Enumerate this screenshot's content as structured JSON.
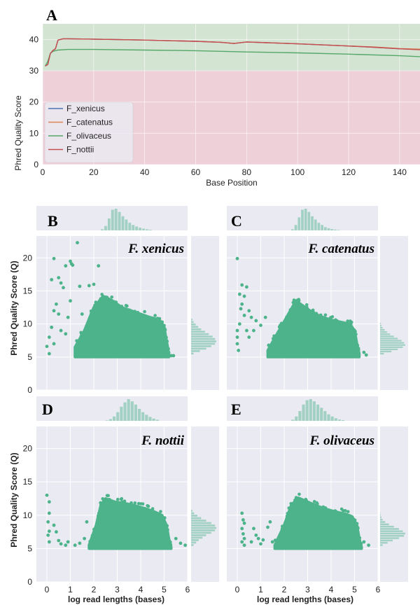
{
  "panel_a": {
    "letter": "A",
    "ylabel": "Phred Quality Score",
    "xlabel": "Base Position",
    "xticks": [
      "0",
      "20",
      "40",
      "60",
      "80",
      "100",
      "120",
      "140"
    ],
    "yticks": [
      "0",
      "10",
      "20",
      "30",
      "40"
    ]
  },
  "panels": {
    "B": {
      "letter": "B",
      "species": "F. xenicus"
    },
    "C": {
      "letter": "C",
      "species": "F. catenatus"
    },
    "D": {
      "letter": "D",
      "species": "F. nottii"
    },
    "E": {
      "letter": "E",
      "species": "F. olivaceus"
    }
  },
  "scatter_ylabel": "Phred Quality Score (Q)",
  "scatter_xlabel": "log read lengths (bases)",
  "scatter_xticks": [
    "0",
    "1",
    "2",
    "3",
    "4",
    "5",
    "6"
  ],
  "scatter_yticks": [
    "0",
    "5",
    "10",
    "15",
    "20"
  ],
  "colors": {
    "background": "#eaeaf2",
    "good_zone": "#d3e4d3",
    "bad_zone": "#eed0d8",
    "scatter": "#4cb38b",
    "xenicus": "#4c72b0",
    "catenatus": "#dd8452",
    "olivaceus": "#55a868",
    "nottii": "#c44e52"
  },
  "chart_data": [
    {
      "type": "line",
      "title": "",
      "xlabel": "Base Position",
      "ylabel": "Phred Quality Score",
      "xlim": [
        0,
        148
      ],
      "ylim": [
        0,
        45
      ],
      "quality_zones": [
        {
          "from": 0,
          "to": 30,
          "color": "#eed0d8"
        },
        {
          "from": 30,
          "to": 45,
          "color": "#d3e4d3"
        }
      ],
      "legend": "lower-left",
      "series": [
        {
          "name": "F_xenicus",
          "color": "#4c72b0",
          "x": [
            1,
            2,
            3,
            4,
            5,
            6,
            8,
            10,
            20,
            40,
            60,
            70,
            75,
            80,
            100,
            120,
            130,
            140,
            148
          ],
          "y": [
            31.5,
            32,
            35.5,
            36.5,
            37,
            39.8,
            40.2,
            40.2,
            40.1,
            39.8,
            39.4,
            39.1,
            38.7,
            39.2,
            38.6,
            37.9,
            37.5,
            37,
            36.8
          ]
        },
        {
          "name": "F_catenatus",
          "color": "#dd8452",
          "x": [
            1,
            2,
            3,
            4,
            5,
            6,
            8,
            10,
            20,
            40,
            60,
            70,
            75,
            80,
            100,
            120,
            130,
            140,
            148
          ],
          "y": [
            31.5,
            32,
            35.5,
            36.5,
            37,
            39.8,
            40.2,
            40.2,
            40.1,
            39.8,
            39.4,
            39.1,
            38.7,
            39.2,
            38.6,
            37.9,
            37.6,
            37.1,
            36.9
          ]
        },
        {
          "name": "F_olivaceus",
          "color": "#55a868",
          "x": [
            1,
            2,
            3,
            4,
            6,
            10,
            20,
            40,
            60,
            80,
            100,
            120,
            140,
            148
          ],
          "y": [
            31.5,
            33,
            35.5,
            36.2,
            36.6,
            36.8,
            36.8,
            36.6,
            36.4,
            36,
            35.7,
            35.3,
            34.8,
            34.5
          ]
        },
        {
          "name": "F_nottii",
          "color": "#c44e52",
          "x": [
            1,
            2,
            3,
            4,
            5,
            6,
            8,
            10,
            20,
            40,
            60,
            70,
            75,
            80,
            100,
            120,
            130,
            140,
            148
          ],
          "y": [
            31.5,
            32,
            35.5,
            36.5,
            37,
            39.8,
            40.2,
            40.2,
            40.1,
            39.8,
            39.4,
            39.1,
            38.7,
            39.2,
            38.6,
            37.9,
            37.5,
            37,
            36.7
          ]
        }
      ]
    },
    {
      "type": "scatter",
      "panel": "B",
      "title": "F. xenicus",
      "xlabel": "log read lengths (bases)",
      "ylabel": "Phred Quality Score (Q)",
      "xlim": [
        -0.3,
        6
      ],
      "ylim": [
        0,
        23
      ],
      "bulk_upper": [
        [
          1.2,
          6.5
        ],
        [
          1.6,
          9
        ],
        [
          2,
          12.5
        ],
        [
          2.4,
          14.2
        ],
        [
          2.8,
          13.5
        ],
        [
          3.2,
          12.5
        ],
        [
          3.6,
          12
        ],
        [
          4,
          11.5
        ],
        [
          4.4,
          11
        ],
        [
          4.8,
          10.6
        ],
        [
          5,
          9.5
        ],
        [
          5.1,
          7.5
        ],
        [
          5.2,
          5.5
        ]
      ],
      "bulk_lower": 5,
      "outliers": [
        [
          0.3,
          19.9
        ],
        [
          1.3,
          22.3
        ],
        [
          1.0,
          19.5
        ],
        [
          1.05,
          19.1
        ],
        [
          0.8,
          18.8
        ],
        [
          0.5,
          17
        ],
        [
          0.2,
          16.7
        ],
        [
          0.6,
          16.2
        ],
        [
          0.7,
          15.5
        ],
        [
          1.4,
          15.7
        ],
        [
          1.1,
          18.9
        ],
        [
          2.2,
          18.8
        ],
        [
          1.0,
          13.5
        ],
        [
          0.4,
          13
        ],
        [
          1.8,
          15.8
        ],
        [
          2.0,
          16
        ],
        [
          0.3,
          12
        ],
        [
          0.5,
          11.5
        ],
        [
          0.9,
          11
        ],
        [
          0.2,
          9.5
        ],
        [
          0.1,
          8
        ],
        [
          0,
          6.6
        ],
        [
          0.1,
          5.5
        ],
        [
          0.3,
          7
        ],
        [
          0.6,
          9
        ],
        [
          0.8,
          8.5
        ],
        [
          1.5,
          11.5
        ],
        [
          5.3,
          5.2
        ],
        [
          5.4,
          5.2
        ]
      ],
      "marginal_x": [
        0.05,
        0.2,
        0.55,
        0.95,
        1,
        0.85,
        0.65,
        0.5,
        0.35,
        0.25,
        0.18,
        0.12,
        0.08,
        0.05,
        0.03
      ],
      "marginal_x_range": [
        2.3,
        4.5
      ],
      "marginal_y": [
        0.1,
        0.35,
        0.6,
        0.8,
        0.95,
        1,
        0.95,
        0.85,
        0.7,
        0.55,
        0.4,
        0.28,
        0.18,
        0.1,
        0.05
      ],
      "marginal_y_range": [
        5.3,
        10.8
      ]
    },
    {
      "type": "scatter",
      "panel": "C",
      "title": "F. catenatus",
      "xlabel": "log read lengths (bases)",
      "ylabel": "Phred Quality Score (Q)",
      "xlim": [
        -0.3,
        6
      ],
      "ylim": [
        0,
        23
      ],
      "bulk_upper": [
        [
          1.3,
          6
        ],
        [
          1.7,
          8.5
        ],
        [
          2.1,
          11
        ],
        [
          2.5,
          13.5
        ],
        [
          2.7,
          13
        ],
        [
          3.1,
          12
        ],
        [
          3.5,
          11.2
        ],
        [
          4,
          10.6
        ],
        [
          4.4,
          10.3
        ],
        [
          4.8,
          10
        ],
        [
          5,
          9
        ],
        [
          5.1,
          7
        ],
        [
          5.2,
          5.5
        ]
      ],
      "bulk_lower": 5,
      "outliers": [
        [
          0,
          19.9
        ],
        [
          0.2,
          15.9
        ],
        [
          0.4,
          15.6
        ],
        [
          0.1,
          14.5
        ],
        [
          0.3,
          14.2
        ],
        [
          0.2,
          13
        ],
        [
          0.15,
          12.3
        ],
        [
          0.5,
          12
        ],
        [
          0.3,
          11.3
        ],
        [
          0.6,
          11
        ],
        [
          0.8,
          10.5
        ],
        [
          0.1,
          10
        ],
        [
          0,
          9
        ],
        [
          0,
          8
        ],
        [
          0,
          7
        ],
        [
          0.05,
          6
        ],
        [
          0.4,
          9
        ],
        [
          0.5,
          8
        ],
        [
          0.7,
          9
        ],
        [
          1.0,
          9.8
        ],
        [
          1.2,
          11
        ],
        [
          5.4,
          5.7
        ],
        [
          5.5,
          5.3
        ]
      ],
      "marginal_x": [
        0.05,
        0.25,
        0.6,
        0.95,
        1,
        0.85,
        0.65,
        0.5,
        0.35,
        0.25,
        0.15,
        0.1,
        0.06,
        0.04,
        0.02
      ],
      "marginal_x_range": [
        2.3,
        4.4
      ],
      "marginal_y": [
        0.15,
        0.45,
        0.7,
        0.9,
        1,
        0.95,
        0.85,
        0.7,
        0.55,
        0.4,
        0.28,
        0.18,
        0.1,
        0.05,
        0.03
      ],
      "marginal_y_range": [
        5.3,
        10.2
      ]
    },
    {
      "type": "scatter",
      "panel": "D",
      "title": "F. nottii",
      "xlabel": "log read lengths (bases)",
      "ylabel": "Phred Quality Score (Q)",
      "xlim": [
        -0.3,
        6
      ],
      "ylim": [
        0,
        23
      ],
      "bulk_upper": [
        [
          1.8,
          5.5
        ],
        [
          2.1,
          8.5
        ],
        [
          2.3,
          11.5
        ],
        [
          2.5,
          12.5
        ],
        [
          2.9,
          12
        ],
        [
          3.3,
          11.8
        ],
        [
          3.8,
          11.4
        ],
        [
          4.2,
          11
        ],
        [
          4.6,
          10.5
        ],
        [
          4.9,
          10
        ],
        [
          5.1,
          8.5
        ],
        [
          5.2,
          6.5
        ],
        [
          5.3,
          5.2
        ]
      ],
      "bulk_lower": 5,
      "outliers": [
        [
          0,
          13
        ],
        [
          0.1,
          12
        ],
        [
          0.1,
          10.3
        ],
        [
          0.05,
          9
        ],
        [
          0.1,
          7.6
        ],
        [
          0.05,
          7
        ],
        [
          0.1,
          6
        ],
        [
          0.3,
          8.5
        ],
        [
          0.4,
          7.5
        ],
        [
          0.5,
          6.2
        ],
        [
          0.6,
          5.7
        ],
        [
          0.8,
          5.5
        ],
        [
          0.9,
          6
        ],
        [
          1.2,
          5.5
        ],
        [
          1.4,
          5.8
        ],
        [
          1.6,
          6.5
        ],
        [
          1.7,
          9
        ],
        [
          1.9,
          6.2
        ],
        [
          5.5,
          6.5
        ],
        [
          5.7,
          5.8
        ],
        [
          5.9,
          5.5
        ]
      ],
      "marginal_x": [
        0.02,
        0.08,
        0.2,
        0.4,
        0.65,
        0.85,
        1,
        0.9,
        0.75,
        0.55,
        0.4,
        0.28,
        0.18,
        0.1,
        0.05
      ],
      "marginal_x_range": [
        2.5,
        4.8
      ],
      "marginal_y": [
        0.1,
        0.2,
        0.3,
        0.45,
        0.6,
        0.8,
        0.95,
        1,
        0.95,
        0.8,
        0.6,
        0.4,
        0.25,
        0.12,
        0.05
      ],
      "marginal_y_range": [
        5.3,
        10.8
      ]
    },
    {
      "type": "scatter",
      "panel": "E",
      "title": "F. olivaceus",
      "xlabel": "log read lengths (bases)",
      "ylabel": "Phred Quality Score (Q)",
      "xlim": [
        -0.3,
        6
      ],
      "ylim": [
        0,
        23
      ],
      "bulk_upper": [
        [
          1.6,
          5.5
        ],
        [
          2,
          8.5
        ],
        [
          2.3,
          11.5
        ],
        [
          2.6,
          12.6
        ],
        [
          3,
          12
        ],
        [
          3.4,
          11.4
        ],
        [
          3.8,
          10.9
        ],
        [
          4.2,
          10.5
        ],
        [
          4.6,
          10.2
        ],
        [
          4.9,
          9.8
        ],
        [
          5.1,
          8.5
        ],
        [
          5.2,
          6.5
        ],
        [
          5.3,
          5.2
        ]
      ],
      "bulk_lower": 5,
      "outliers": [
        [
          0.2,
          10.3
        ],
        [
          0.25,
          9.3
        ],
        [
          0.3,
          8.8
        ],
        [
          0.2,
          8
        ],
        [
          0.25,
          7.2
        ],
        [
          0.3,
          6.5
        ],
        [
          0.2,
          6
        ],
        [
          0.3,
          5.5
        ],
        [
          0.6,
          6
        ],
        [
          0.7,
          8
        ],
        [
          0.8,
          7
        ],
        [
          0.9,
          6.5
        ],
        [
          1.0,
          5.7
        ],
        [
          1.1,
          6.3
        ],
        [
          1.3,
          8.2
        ],
        [
          1.5,
          6
        ],
        [
          1.4,
          9
        ],
        [
          5.4,
          6
        ],
        [
          5.6,
          5.5
        ]
      ],
      "marginal_x": [
        0.05,
        0.2,
        0.45,
        0.75,
        0.95,
        1,
        0.9,
        0.75,
        0.6,
        0.45,
        0.3,
        0.2,
        0.12,
        0.06,
        0.03
      ],
      "marginal_x_range": [
        2.3,
        4.6
      ],
      "marginal_y": [
        0.1,
        0.3,
        0.5,
        0.75,
        0.95,
        1,
        0.9,
        0.75,
        0.55,
        0.35,
        0.2,
        0.1,
        0.05,
        0.02,
        0.01
      ],
      "marginal_y_range": [
        5.3,
        10.5
      ]
    }
  ]
}
